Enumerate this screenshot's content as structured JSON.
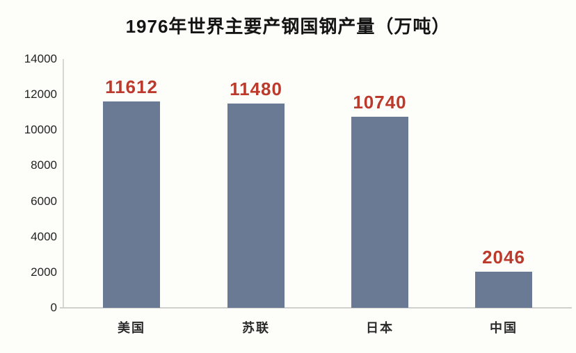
{
  "chart_data": {
    "type": "bar",
    "title": "1976年世界主要产钢国钢产量（万吨）",
    "categories": [
      "美国",
      "苏联",
      "日本",
      "中国"
    ],
    "values": [
      11612,
      11480,
      10740,
      2046
    ],
    "value_labels": [
      "11612",
      "11480",
      "10740",
      "2046"
    ],
    "xlabel": "",
    "ylabel": "",
    "ylim": [
      0,
      14000
    ],
    "y_tick_step": 2000,
    "y_ticks": [
      "14000",
      "12000",
      "10000",
      "8000",
      "6000",
      "4000",
      "2000",
      "0"
    ],
    "grid": false,
    "legend_position": "none",
    "colors": {
      "bar": "#6b7a94",
      "value_label": "#bc3a2c",
      "axis_line": "#d0d0ce",
      "tick_text": "#232323",
      "title_text": "#141414",
      "background": "#fdfdfa"
    }
  }
}
